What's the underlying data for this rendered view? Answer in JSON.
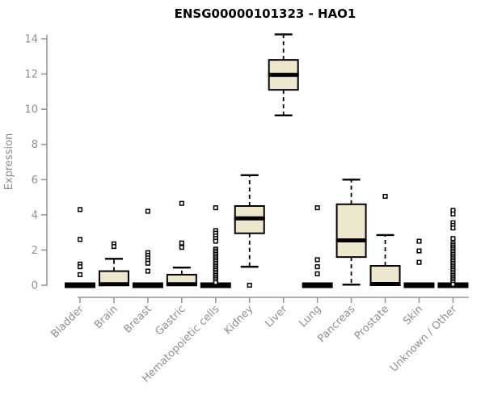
{
  "title": "ENSG00000101323 - HAO1",
  "colors": {
    "box_fill": "#EDE7CE",
    "box_border": "#000000",
    "axis_line": "#999999",
    "tick_text": "#8f8f8f",
    "title_text": "#000000",
    "background": "#ffffff"
  },
  "chart_data": {
    "type": "boxplot",
    "title": "ENSG00000101323 - HAO1",
    "xlabel": "",
    "ylabel": "Expression",
    "ylim": [
      0,
      14.3
    ],
    "yticks": [
      0,
      2,
      4,
      6,
      8,
      10,
      12,
      14
    ],
    "grid": false,
    "x_label_rotation_deg": 45,
    "categories": [
      "Bladder",
      "Brain",
      "Breast",
      "Gastric",
      "Hematopoietic cells",
      "Kidney",
      "Liver",
      "Lung",
      "Pancreas",
      "Prostate",
      "Skin",
      "Unknown / Other"
    ],
    "series": [
      {
        "name": "Bladder",
        "whisker_low": 0,
        "q1": 0,
        "median": 0,
        "q3": 0,
        "whisker_high": 0,
        "outliers": [
          4.3,
          2.6,
          1.2,
          1.05,
          0.6
        ]
      },
      {
        "name": "Brain",
        "whisker_low": 0,
        "q1": 0,
        "median": 0.06,
        "q3": 0.8,
        "whisker_high": 1.5,
        "outliers": [
          2.35,
          2.2
        ]
      },
      {
        "name": "Breast",
        "whisker_low": 0,
        "q1": 0,
        "median": 0,
        "q3": 0,
        "whisker_high": 0,
        "outliers": [
          4.2,
          1.85,
          1.7,
          1.55,
          1.4,
          1.25,
          0.8
        ]
      },
      {
        "name": "Gastric",
        "whisker_low": 0,
        "q1": 0,
        "median": 0.06,
        "q3": 0.6,
        "whisker_high": 1.0,
        "outliers": [
          4.65,
          2.4,
          2.15
        ]
      },
      {
        "name": "Hematopoietic cells",
        "whisker_low": 0,
        "q1": 0,
        "median": 0,
        "q3": 0,
        "whisker_high": 0,
        "outliers": [
          4.4,
          3.1,
          2.95,
          2.8,
          2.65,
          2.5,
          2.05,
          1.95,
          1.85,
          1.75,
          1.65,
          1.55,
          1.45,
          1.35,
          1.25,
          1.15,
          1.05,
          0.95,
          0.85,
          0.75,
          0.65,
          0.55,
          0.45,
          0.35,
          0.25,
          0.15
        ]
      },
      {
        "name": "Kidney",
        "whisker_low": 1.05,
        "q1": 2.95,
        "median": 3.8,
        "q3": 4.5,
        "whisker_high": 6.25,
        "outliers": [
          0.0
        ]
      },
      {
        "name": "Liver",
        "whisker_low": 9.65,
        "q1": 11.1,
        "median": 11.95,
        "q3": 12.8,
        "whisker_high": 14.25,
        "outliers": []
      },
      {
        "name": "Lung",
        "whisker_low": 0,
        "q1": 0,
        "median": 0,
        "q3": 0,
        "whisker_high": 0,
        "outliers": [
          4.4,
          1.45,
          1.05,
          0.65
        ]
      },
      {
        "name": "Pancreas",
        "whisker_low": 0.03,
        "q1": 1.6,
        "median": 2.55,
        "q3": 4.6,
        "whisker_high": 6.0,
        "outliers": []
      },
      {
        "name": "Prostate",
        "whisker_low": 0,
        "q1": 0,
        "median": 0.07,
        "q3": 1.1,
        "whisker_high": 2.85,
        "outliers": [
          5.05
        ]
      },
      {
        "name": "Skin",
        "whisker_low": 0,
        "q1": 0,
        "median": 0,
        "q3": 0,
        "whisker_high": 0,
        "outliers": [
          2.5,
          1.95,
          1.3
        ]
      },
      {
        "name": "Unknown / Other",
        "whisker_low": 0,
        "q1": 0,
        "median": 0,
        "q3": 0,
        "whisker_high": 0,
        "outliers": [
          4.25,
          4.05,
          3.55,
          3.4,
          3.25,
          2.65,
          2.35,
          2.25,
          2.15,
          2.05,
          1.95,
          1.85,
          1.75,
          1.65,
          1.55,
          1.45,
          1.35,
          1.25,
          1.15,
          1.05,
          0.95,
          0.85,
          0.75,
          0.65,
          0.55,
          0.45,
          0.35,
          0.25,
          0.15,
          0.05
        ]
      }
    ]
  }
}
